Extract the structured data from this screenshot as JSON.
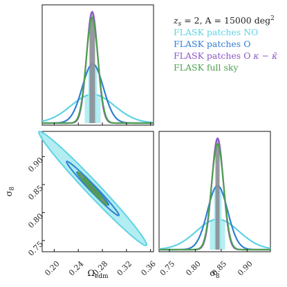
{
  "chart_data": {
    "type": "corner",
    "parameters": [
      {
        "name": "omega_edm",
        "label_base": "Ω",
        "label_sub": "edm",
        "range": [
          0.18,
          0.365
        ],
        "ticks": [
          0.2,
          0.24,
          0.28,
          0.32,
          0.36
        ],
        "tick_labels": [
          "0.20",
          "0.24",
          "0.28",
          "0.32",
          "0.36"
        ]
      },
      {
        "name": "sigma8",
        "label_base": "σ",
        "label_sub": "8",
        "range": [
          0.73,
          0.945
        ],
        "ticks": [
          0.75,
          0.8,
          0.85,
          0.9
        ],
        "tick_labels": [
          "0.75",
          "0.80",
          "0.85",
          "0.90"
        ]
      }
    ],
    "legend": {
      "header_lhs": "z",
      "header_lhs_sub": "s",
      "header_rest": " = 2, A = 15000 deg",
      "header_sup": "2",
      "entries": [
        {
          "label": "FLASK patches NO",
          "extra": "",
          "color": "#5fd2e3"
        },
        {
          "label": "FLASK patches O",
          "extra": "",
          "color": "#2f7fd0"
        },
        {
          "label": "FLASK patches O ",
          "extra": "κ − κ̄",
          "color": "#8a56c8"
        },
        {
          "label": "FLASK full sky",
          "extra": "",
          "color": "#4ea04e"
        }
      ]
    },
    "series": [
      {
        "name": "FLASK patches NO",
        "color": "#5fd2e3",
        "fill": "#a9ebf0",
        "omega_mean": 0.264,
        "omega_sigma": 0.036,
        "sigma8_mean": 0.843,
        "sigma8_sigma": 0.041,
        "correlation": -0.985,
        "contour_levels": [
          2
        ],
        "omega_band": [
          0.25,
          0.278
        ],
        "sigma8_band": [
          0.828,
          0.858
        ]
      },
      {
        "name": "FLASK patches O",
        "color": "#2f7fd0",
        "fill": "#a9ebf0",
        "omega_mean": 0.264,
        "omega_sigma": 0.0175,
        "sigma8_mean": 0.843,
        "sigma8_sigma": 0.0195,
        "correlation": -0.985,
        "contour_levels": [
          1,
          2
        ],
        "omega_band": [
          0.256,
          0.272
        ],
        "sigma8_band": [
          0.835,
          0.851
        ]
      },
      {
        "name": "FLASK patches O κ − κ̄",
        "color": "#8a56c8",
        "fill": "#8a8f95",
        "omega_mean": 0.263,
        "omega_sigma": 0.0093,
        "sigma8_mean": 0.843,
        "sigma8_sigma": 0.0112,
        "correlation": -0.985,
        "contour_levels": [
          1,
          2
        ],
        "omega_band": [
          0.258,
          0.268
        ],
        "sigma8_band": [
          0.838,
          0.848
        ]
      },
      {
        "name": "FLASK full sky",
        "color": "#4ea04e",
        "fill": "#8a8f95",
        "omega_mean": 0.263,
        "omega_sigma": 0.0098,
        "sigma8_mean": 0.843,
        "sigma8_sigma": 0.0118,
        "correlation": -0.985,
        "contour_levels": [
          1,
          2
        ],
        "omega_band": [
          0.258,
          0.268
        ],
        "sigma8_band": [
          0.838,
          0.848
        ]
      }
    ]
  }
}
